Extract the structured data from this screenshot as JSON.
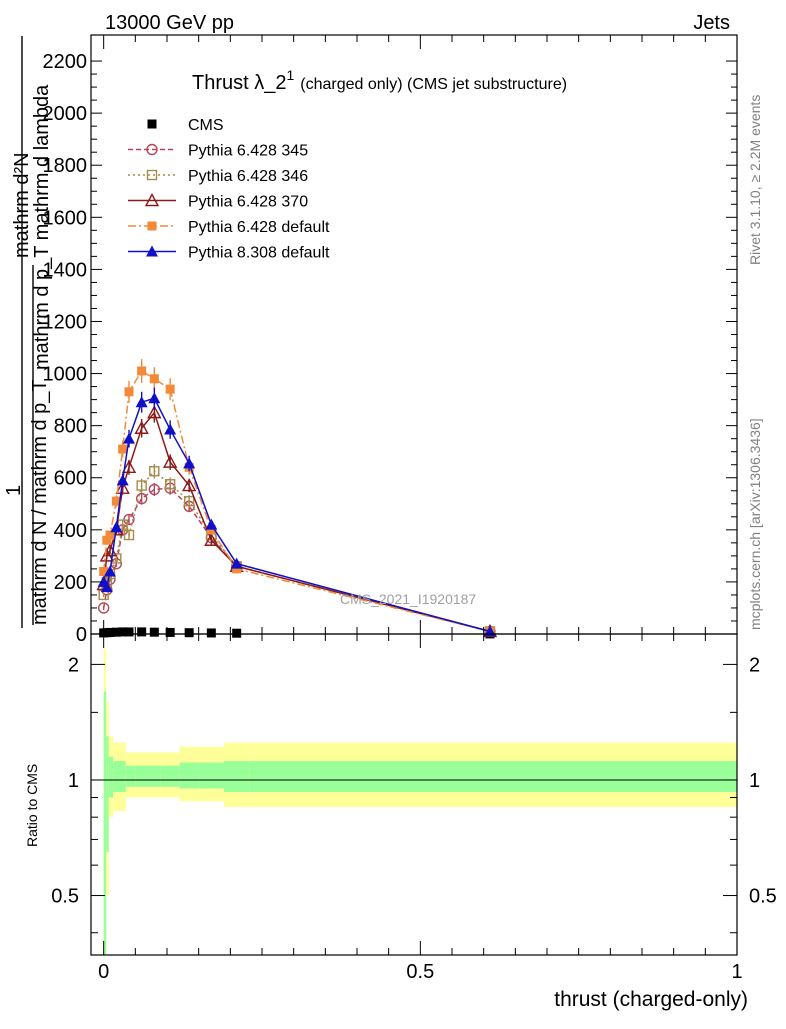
{
  "header": {
    "energy_label": "13000 GeV pp",
    "process_label": "Jets"
  },
  "side": {
    "rivet_label": "Rivet 3.1.10, ≥ 2.2M events",
    "mcplots_label": "mcplots.cern.ch [arXiv:1306.3436]"
  },
  "colors": {
    "cms": "#000000",
    "p345": "#b5475a",
    "p346": "#a88a4a",
    "p370": "#8b1a1a",
    "pdef": "#f28a3a",
    "p8": "#1010c8",
    "band_yellow": "#ffff99",
    "band_green": "#99ff99"
  },
  "chart_data": [
    {
      "type": "line",
      "title": "Thrust λ_2¹ (charged only) (CMS jet substructure)",
      "title_main": "Thrust λ_2",
      "title_sup": "1",
      "title_tail": "(charged only) (CMS jet substructure)",
      "ylabel_top": "mathrm d²N",
      "ylabel_mid": "mathrm d p_T mathrm d lambda",
      "ylabel_one": "1",
      "ylabel_bottom": "mathrm d N / mathrm d p_T",
      "watermark": "CMS_2021_I1920187",
      "xlim": [
        -0.02,
        1.0
      ],
      "ylim": [
        0,
        2300
      ],
      "yticks": [
        0,
        200,
        400,
        600,
        800,
        1000,
        1200,
        1400,
        1600,
        1800,
        2000,
        2200
      ],
      "ytick_labels": [
        "0",
        "200",
        "400",
        "600",
        "800",
        "1000",
        "1200",
        "1400",
        "1600",
        "1800",
        "2000",
        "2200"
      ],
      "legend_position": "top-left",
      "series": [
        {
          "name": "CMS",
          "marker": "square-filled",
          "line": "none",
          "x": [
            0.0,
            0.005,
            0.01,
            0.02,
            0.03,
            0.04,
            0.06,
            0.08,
            0.105,
            0.135,
            0.17,
            0.21,
            0.61
          ],
          "y": [
            4,
            5,
            6,
            7,
            8,
            8,
            8,
            7,
            6,
            5,
            4,
            3,
            0.3
          ]
        },
        {
          "name": "Pythia 6.428 345",
          "marker": "circle-open",
          "line": "dashed",
          "x": [
            0.0,
            0.005,
            0.01,
            0.02,
            0.03,
            0.04,
            0.06,
            0.08,
            0.105,
            0.135,
            0.17,
            0.21,
            0.61
          ],
          "y": [
            100,
            170,
            210,
            270,
            400,
            440,
            520,
            555,
            560,
            490,
            370,
            260,
            10
          ]
        },
        {
          "name": "Pythia 6.428 346",
          "marker": "square-open",
          "line": "dotted",
          "x": [
            0.0,
            0.005,
            0.01,
            0.02,
            0.03,
            0.04,
            0.06,
            0.08,
            0.105,
            0.135,
            0.17,
            0.21,
            0.61
          ],
          "y": [
            150,
            200,
            230,
            290,
            420,
            380,
            570,
            625,
            575,
            510,
            380,
            260,
            10
          ]
        },
        {
          "name": "Pythia 6.428 370",
          "marker": "triangle-open",
          "line": "solid",
          "x": [
            0.0,
            0.005,
            0.01,
            0.02,
            0.03,
            0.04,
            0.06,
            0.08,
            0.105,
            0.135,
            0.17,
            0.21,
            0.61
          ],
          "y": [
            190,
            300,
            320,
            400,
            560,
            640,
            790,
            850,
            660,
            570,
            360,
            260,
            10
          ]
        },
        {
          "name": "Pythia 6.428 default",
          "marker": "square-filled",
          "line": "dashdot",
          "x": [
            0.0,
            0.005,
            0.01,
            0.02,
            0.03,
            0.04,
            0.06,
            0.08,
            0.105,
            0.135,
            0.17,
            0.21,
            0.61
          ],
          "y": [
            240,
            360,
            380,
            510,
            710,
            930,
            1010,
            980,
            940,
            640,
            400,
            250,
            10
          ]
        },
        {
          "name": "Pythia 8.308 default",
          "marker": "triangle-filled",
          "line": "solid",
          "x": [
            0.0,
            0.005,
            0.01,
            0.02,
            0.03,
            0.04,
            0.06,
            0.08,
            0.105,
            0.135,
            0.17,
            0.21,
            0.61
          ],
          "y": [
            200,
            180,
            240,
            410,
            590,
            750,
            890,
            905,
            785,
            655,
            420,
            270,
            10
          ]
        }
      ]
    },
    {
      "type": "area",
      "ylabel": "Ratio to CMS",
      "xlabel": "thrust (charged-only)",
      "xlim": [
        -0.02,
        1.0
      ],
      "ylim": [
        0.35,
        2.4
      ],
      "yscale": "log",
      "yticks": [
        0.5,
        1,
        2
      ],
      "ytick_labels": [
        "0.5",
        "1",
        "2"
      ],
      "xticks": [
        0,
        0.5,
        1
      ],
      "xtick_labels": [
        "0",
        "0.5",
        "1"
      ],
      "bands": {
        "x_edges": [
          0.0,
          0.004,
          0.008,
          0.015,
          0.035,
          0.05,
          0.07,
          0.09,
          0.12,
          0.15,
          0.19,
          0.23,
          1.0
        ],
        "yellow_low": [
          0.3,
          0.5,
          0.8,
          0.83,
          0.9,
          0.9,
          0.9,
          0.9,
          0.88,
          0.88,
          0.85,
          0.85
        ],
        "yellow_high": [
          2.2,
          1.6,
          1.3,
          1.25,
          1.18,
          1.18,
          1.18,
          1.18,
          1.22,
          1.22,
          1.25,
          1.25
        ],
        "green_low": [
          0.3,
          0.65,
          0.9,
          0.93,
          0.96,
          0.96,
          0.96,
          0.96,
          0.95,
          0.95,
          0.93,
          0.93
        ],
        "green_high": [
          1.7,
          1.3,
          1.15,
          1.12,
          1.09,
          1.09,
          1.09,
          1.09,
          1.11,
          1.11,
          1.12,
          1.12
        ]
      }
    }
  ]
}
